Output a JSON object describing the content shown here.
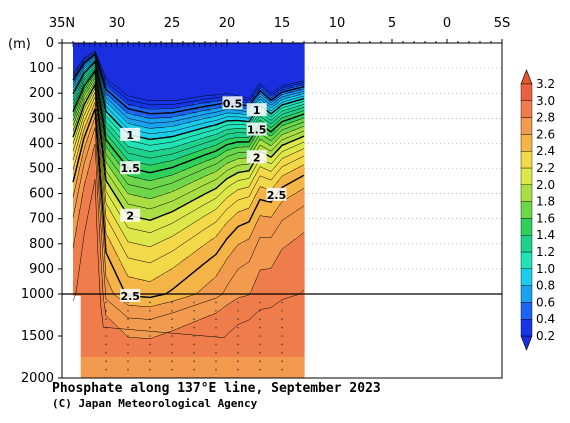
{
  "chart_data": {
    "type": "contour",
    "title": "Phosphate along 137°E line, September 2023",
    "credit": "(C) Japan Meteorological Agency",
    "ylabel": "(m)",
    "x_axis": {
      "ticks": [
        35,
        30,
        25,
        20,
        15,
        10,
        5,
        0,
        -5
      ],
      "tick_labels": [
        "35N",
        "30",
        "25",
        "20",
        "15",
        "10",
        "5",
        "0",
        "5S"
      ],
      "range_lat": [
        35,
        -5
      ],
      "data_extent_lat": [
        34,
        13
      ]
    },
    "y_axis": {
      "upper_ticks": [
        0,
        100,
        200,
        300,
        400,
        500,
        600,
        700,
        800,
        900,
        1000
      ],
      "lower_ticks": [
        1500,
        2000
      ],
      "range_m": [
        0,
        2000
      ],
      "break_at_m": 1000
    },
    "contour_labels": [
      "0.5",
      "1",
      "1.5",
      "2",
      "2.5",
      "1",
      "1.5",
      "2",
      "2.5"
    ],
    "colorbar": {
      "levels": [
        "0.2",
        "0.4",
        "0.6",
        "0.8",
        "1.0",
        "1.2",
        "1.4",
        "1.6",
        "1.8",
        "2.0",
        "2.2",
        "2.4",
        "2.6",
        "2.8",
        "3.0",
        "3.2"
      ],
      "colors": [
        "#1535e6",
        "#1a66f2",
        "#1aa2ef",
        "#19cdeb",
        "#22e3b7",
        "#1fd28b",
        "#2fd05a",
        "#6ed64a",
        "#a9df45",
        "#dce84a",
        "#f3d84a",
        "#f5b447",
        "#f29a4f",
        "#ef7d4c",
        "#ea6140",
        "#e4562c"
      ],
      "extend_low_color": "#1b2fe0",
      "extend_high_color": "#e4562c"
    }
  }
}
